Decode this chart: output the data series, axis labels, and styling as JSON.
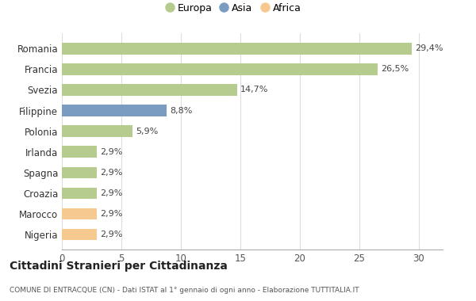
{
  "categories": [
    "Nigeria",
    "Marocco",
    "Croazia",
    "Spagna",
    "Irlanda",
    "Polonia",
    "Filippine",
    "Svezia",
    "Francia",
    "Romania"
  ],
  "values": [
    2.9,
    2.9,
    2.9,
    2.9,
    2.9,
    5.9,
    8.8,
    14.7,
    26.5,
    29.4
  ],
  "labels": [
    "2,9%",
    "2,9%",
    "2,9%",
    "2,9%",
    "2,9%",
    "5,9%",
    "8,8%",
    "14,7%",
    "26,5%",
    "29,4%"
  ],
  "colors": [
    "#f5c990",
    "#f5c990",
    "#b5cc8e",
    "#b5cc8e",
    "#b5cc8e",
    "#b5cc8e",
    "#7a9cc0",
    "#b5cc8e",
    "#b5cc8e",
    "#b5cc8e"
  ],
  "legend_labels": [
    "Europa",
    "Asia",
    "Africa"
  ],
  "legend_colors": [
    "#b5cc8e",
    "#7a9cc0",
    "#f5c990"
  ],
  "title": "Cittadini Stranieri per Cittadinanza",
  "subtitle": "COMUNE DI ENTRACQUE (CN) - Dati ISTAT al 1° gennaio di ogni anno - Elaborazione TUTTITALIA.IT",
  "xlim": [
    0,
    32
  ],
  "xticks": [
    0,
    5,
    10,
    15,
    20,
    25,
    30
  ],
  "background_color": "#ffffff",
  "bar_height": 0.55
}
